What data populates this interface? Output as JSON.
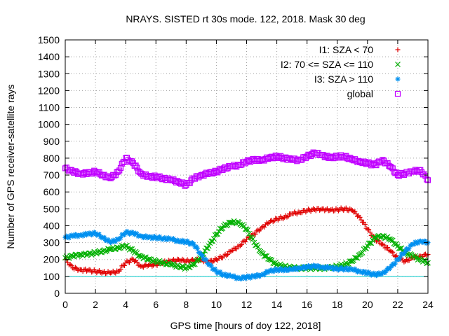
{
  "chart_data": {
    "type": "scatter",
    "title": "NRAYS. SISTED rt 30s mode. 122, 2018. Mask 30 deg",
    "xlabel": "GPS time [hours of doy 122, 2018]",
    "ylabel": "Number of GPS receiver-satellite rays",
    "xlim": [
      0,
      24
    ],
    "ylim": [
      0,
      1500
    ],
    "xticks": [
      0,
      2,
      4,
      6,
      8,
      10,
      12,
      14,
      16,
      18,
      20,
      22,
      24
    ],
    "yticks": [
      0,
      100,
      200,
      300,
      400,
      500,
      600,
      700,
      800,
      900,
      1000,
      1100,
      1200,
      1300,
      1400,
      1500
    ],
    "grid": true,
    "legend_position": "top-right",
    "reference_line": {
      "y": 100,
      "color": "#00c8c8"
    },
    "series": [
      {
        "name": "I1: SZA < 70",
        "color": "#e00000",
        "marker": "plus",
        "x": [
          0.0,
          0.5,
          1.0,
          1.5,
          2.0,
          2.5,
          3.0,
          3.5,
          4.0,
          4.5,
          5.0,
          5.5,
          6.0,
          6.5,
          7.0,
          7.5,
          8.0,
          8.5,
          9.0,
          9.5,
          10.0,
          10.5,
          11.0,
          11.5,
          12.0,
          12.5,
          13.0,
          13.5,
          14.0,
          14.5,
          15.0,
          15.5,
          16.0,
          16.5,
          17.0,
          17.5,
          18.0,
          18.5,
          19.0,
          19.5,
          20.0,
          20.5,
          21.0,
          21.5,
          22.0,
          22.5,
          23.0,
          23.5,
          24.0
        ],
        "y": [
          200,
          150,
          140,
          135,
          130,
          125,
          120,
          130,
          180,
          200,
          160,
          165,
          170,
          185,
          190,
          200,
          190,
          195,
          200,
          185,
          200,
          220,
          250,
          280,
          320,
          350,
          390,
          420,
          440,
          450,
          470,
          480,
          490,
          495,
          500,
          490,
          495,
          500,
          490,
          450,
          380,
          320,
          290,
          250,
          210,
          190,
          210,
          220,
          230
        ]
      },
      {
        "name": "I2: 70 <= SZA <= 110",
        "color": "#00b000",
        "marker": "cross",
        "x": [
          0.0,
          0.5,
          1.0,
          1.5,
          2.0,
          2.5,
          3.0,
          3.5,
          4.0,
          4.5,
          5.0,
          5.5,
          6.0,
          6.5,
          7.0,
          7.5,
          8.0,
          8.5,
          9.0,
          9.5,
          10.0,
          10.5,
          11.0,
          11.5,
          12.0,
          12.5,
          13.0,
          13.5,
          14.0,
          14.5,
          15.0,
          15.5,
          16.0,
          16.5,
          17.0,
          17.5,
          18.0,
          18.5,
          19.0,
          19.5,
          20.0,
          20.5,
          21.0,
          21.5,
          22.0,
          22.5,
          23.0,
          23.5,
          24.0
        ],
        "y": [
          210,
          220,
          230,
          230,
          240,
          250,
          260,
          270,
          280,
          250,
          220,
          200,
          190,
          180,
          170,
          160,
          150,
          170,
          220,
          280,
          350,
          400,
          420,
          420,
          380,
          300,
          240,
          200,
          170,
          160,
          150,
          150,
          150,
          150,
          150,
          150,
          160,
          170,
          190,
          230,
          280,
          330,
          340,
          320,
          280,
          240,
          220,
          200,
          180
        ]
      },
      {
        "name": "I3: SZA > 110",
        "color": "#0090f0",
        "marker": "star",
        "x": [
          0.0,
          0.5,
          1.0,
          1.5,
          2.0,
          2.5,
          3.0,
          3.5,
          4.0,
          4.5,
          5.0,
          5.5,
          6.0,
          6.5,
          7.0,
          7.5,
          8.0,
          8.5,
          9.0,
          9.5,
          10.0,
          10.5,
          11.0,
          11.5,
          12.0,
          12.5,
          13.0,
          13.5,
          14.0,
          14.5,
          15.0,
          15.5,
          16.0,
          16.5,
          17.0,
          17.5,
          18.0,
          18.5,
          19.0,
          19.5,
          20.0,
          20.5,
          21.0,
          21.5,
          22.0,
          22.5,
          23.0,
          23.5,
          24.0
        ],
        "y": [
          330,
          340,
          345,
          350,
          355,
          330,
          300,
          320,
          360,
          355,
          340,
          330,
          330,
          325,
          320,
          310,
          305,
          290,
          230,
          170,
          130,
          110,
          100,
          90,
          95,
          100,
          110,
          130,
          140,
          140,
          140,
          150,
          155,
          160,
          155,
          150,
          145,
          145,
          140,
          130,
          120,
          110,
          120,
          150,
          200,
          250,
          290,
          310,
          300
        ]
      },
      {
        "name": "global",
        "color": "#c000ff",
        "marker": "square",
        "x": [
          0.0,
          0.5,
          1.0,
          1.5,
          2.0,
          2.5,
          3.0,
          3.5,
          4.0,
          4.5,
          5.0,
          5.5,
          6.0,
          6.5,
          7.0,
          7.5,
          8.0,
          8.5,
          9.0,
          9.5,
          10.0,
          10.5,
          11.0,
          11.5,
          12.0,
          12.5,
          13.0,
          13.5,
          14.0,
          14.5,
          15.0,
          15.5,
          16.0,
          16.5,
          17.0,
          17.5,
          18.0,
          18.5,
          19.0,
          19.5,
          20.0,
          20.5,
          21.0,
          21.5,
          22.0,
          22.5,
          23.0,
          23.5,
          24.0
        ],
        "y": [
          740,
          720,
          710,
          710,
          720,
          700,
          680,
          720,
          800,
          770,
          710,
          690,
          690,
          680,
          670,
          660,
          640,
          680,
          700,
          710,
          720,
          740,
          750,
          760,
          780,
          790,
          790,
          800,
          810,
          800,
          790,
          790,
          810,
          830,
          820,
          800,
          810,
          810,
          790,
          780,
          770,
          760,
          790,
          750,
          700,
          710,
          720,
          730,
          670
        ]
      }
    ]
  }
}
